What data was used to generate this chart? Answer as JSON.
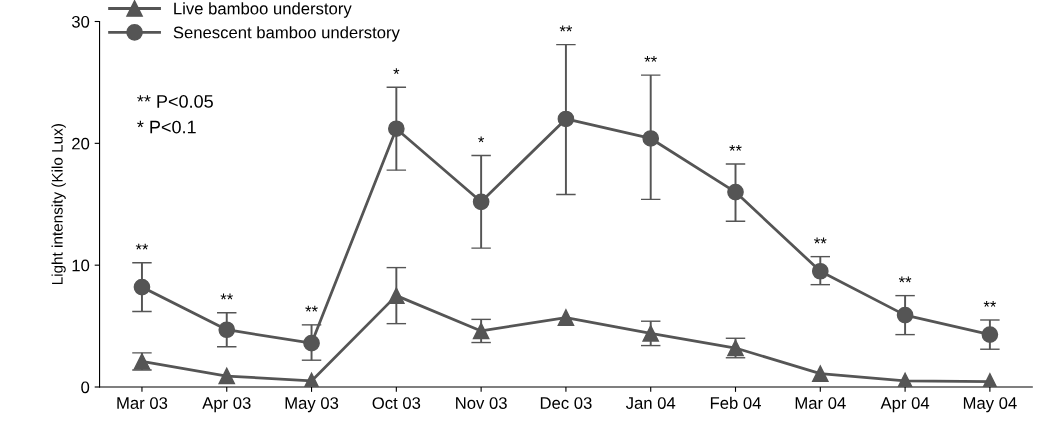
{
  "chart_data": {
    "type": "line",
    "ylabel": "Light intensity (Kilo Lux)",
    "categories": [
      "Mar 03",
      "Apr 03",
      "May 03",
      "Oct 03",
      "Nov 03",
      "Dec 03",
      "Jan 04",
      "Feb 04",
      "Mar 04",
      "Apr 04",
      "May 04"
    ],
    "series": [
      {
        "name": "Live bamboo understory",
        "color": "#555555",
        "marker": "triangle",
        "values": [
          2.1,
          0.9,
          0.5,
          7.5,
          4.6,
          5.7,
          4.4,
          3.2,
          1.1,
          0.5,
          0.45
        ],
        "errors": [
          0.7,
          null,
          null,
          2.3,
          0.95,
          null,
          1.0,
          0.8,
          null,
          null,
          null
        ]
      },
      {
        "name": "Senescent bamboo understory",
        "color": "#555555",
        "marker": "circle",
        "values": [
          8.2,
          4.7,
          3.6,
          21.2,
          15.2,
          22.0,
          20.4,
          16.0,
          9.5,
          5.9,
          4.3
        ],
        "errors": [
          [
            6.2,
            10.2
          ],
          [
            3.3,
            6.1
          ],
          [
            2.2,
            5.1
          ],
          [
            17.8,
            24.6
          ],
          [
            11.4,
            19.0
          ],
          [
            15.8,
            28.1
          ],
          [
            15.4,
            25.6
          ],
          [
            13.6,
            18.3
          ],
          [
            8.4,
            10.7
          ],
          [
            4.3,
            7.5
          ],
          [
            3.1,
            5.5
          ]
        ]
      }
    ],
    "annotations": [
      {
        "text": "**",
        "x": "Mar 03",
        "y": 10.2
      },
      {
        "text": "**",
        "x": "Apr 03",
        "y": 6.1
      },
      {
        "text": "**",
        "x": "May 03",
        "y": 5.1
      },
      {
        "text": "*",
        "x": "Oct 03",
        "y": 24.6
      },
      {
        "text": "*",
        "x": "Nov 03",
        "y": 19.0
      },
      {
        "text": "**",
        "x": "Dec 03",
        "y": 28.1
      },
      {
        "text": "**",
        "x": "Jan 04",
        "y": 25.6
      },
      {
        "text": "**",
        "x": "Feb 04",
        "y": 18.3
      },
      {
        "text": "**",
        "x": "Mar 04",
        "y": 10.7
      },
      {
        "text": "**",
        "x": "Apr 04",
        "y": 7.5
      },
      {
        "text": "**",
        "x": "May 04",
        "y": 5.5
      },
      "** P<0.05",
      "* P<0.1"
    ],
    "ylim": [
      0,
      30
    ],
    "yticks": [
      0,
      10,
      20,
      30
    ],
    "grid": false,
    "legend": "top left",
    "line_style": "solid"
  }
}
